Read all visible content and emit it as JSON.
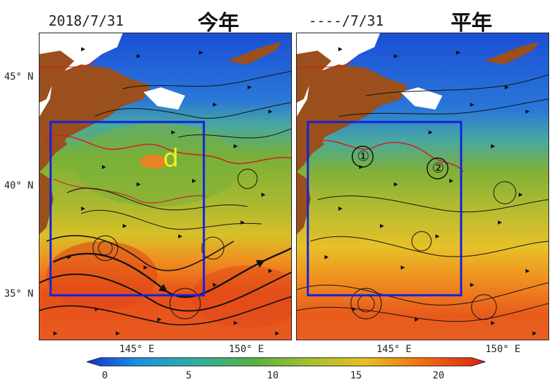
{
  "left_panel": {
    "date_label": "2018/7/31",
    "title": "今年",
    "region_label": "d"
  },
  "right_panel": {
    "date_label": "----/7/31",
    "title": "平年",
    "markers": [
      "①",
      "②"
    ]
  },
  "axes": {
    "lat_ticks": [
      "45° N",
      "40° N",
      "35° N"
    ],
    "lon_ticks_left": [
      "145° E",
      "150° E"
    ],
    "lon_ticks_right": [
      "145° E",
      "150° E"
    ]
  },
  "colorbar": {
    "ticks": [
      "0",
      "5",
      "10",
      "15",
      "20"
    ],
    "colors": [
      "#1030d0",
      "#1890e0",
      "#30b0a0",
      "#58b040",
      "#a8c030",
      "#e8c020",
      "#f07010",
      "#e02010"
    ]
  },
  "map_colors": {
    "land": "#9a4f1c",
    "box": "#1020e0",
    "contour": "#d02020",
    "sst_cold": "#2060d8",
    "sst_mid": "#70b040",
    "sst_warm": "#e85020"
  }
}
